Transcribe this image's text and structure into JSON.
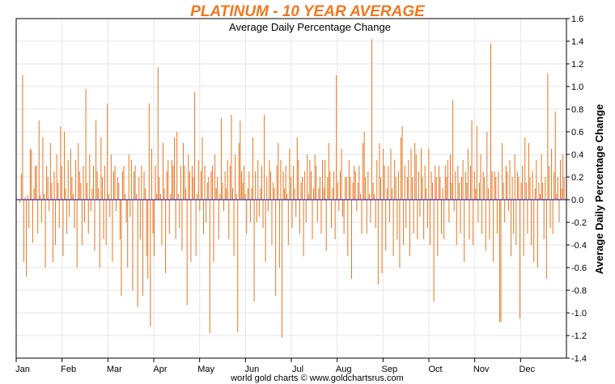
{
  "colors": {
    "bar": "#e87722",
    "zero_line": "#3a2fb0",
    "grid": "#e6e6e6",
    "title": "#f07820",
    "axis": "#000000"
  },
  "chart_data": {
    "type": "bar",
    "title": "PLATINUM - 10 YEAR AVERAGE",
    "subtitle": "Average Daily Percentage Change",
    "ylabel": "Average Daily Percentage Change",
    "footer": "world gold charts © www.goldchartsrus.com",
    "ylim": [
      -1.4,
      1.6
    ],
    "yticks": [
      1.6,
      1.4,
      1.2,
      1.0,
      0.8,
      0.6,
      0.4,
      0.2,
      0.0,
      -0.2,
      -0.4,
      -0.6,
      -0.8,
      -1.0,
      -1.2,
      -1.4
    ],
    "ytick_labels": [
      "1.6",
      "1.4",
      "1.2",
      "1.0",
      "0.8",
      "0.6",
      "0.4",
      "0.2",
      "0.0",
      "-0.2",
      "-0.4",
      "-0.6",
      "-0.8",
      "-1.0",
      "-1.2",
      "-1.4"
    ],
    "y_axis_side": "right",
    "grid": true,
    "months": [
      "Jan",
      "Feb",
      "Mar",
      "Apr",
      "May",
      "Jun",
      "Jul",
      "Aug",
      "Sep",
      "Oct",
      "Nov",
      "Dec"
    ],
    "series": [
      {
        "values": [
          -0.03,
          0.23,
          1.1,
          -0.55,
          0.02,
          -0.68,
          0.04,
          -0.25,
          0.45,
          0.44,
          -0.38,
          0.1,
          0.3,
          0.3,
          -0.3,
          0.7,
          0.04,
          -0.2,
          0.55,
          0.05,
          -0.6,
          0.3,
          0.2,
          -0.1,
          0.5,
          0.15,
          -0.55,
          0.25,
          -0.4,
          0.4,
          0.15,
          -0.25,
          0.65,
          0.3,
          -0.5,
          0.6,
          0.1,
          -0.3,
          0.35,
          -0.15,
          0.45,
          0.2,
          0.05,
          -0.25,
          0.35,
          -0.6,
          0.5,
          0.25,
          0.15,
          -0.4,
          0.3,
          -0.2,
          0.98,
          0.15,
          -0.3,
          0.4,
          -0.1,
          0.1,
          0.3,
          -0.45,
          0.7,
          0.25,
          0.1,
          -0.6,
          0.55,
          0.2,
          -0.35,
          0.3,
          -0.4,
          0.85,
          0.05,
          -0.15,
          0.4,
          -0.55,
          0.25,
          0.3,
          -0.1,
          0.2,
          0.15,
          -0.35,
          -0.85,
          0.25,
          0.3,
          0.05,
          -0.2,
          -0.6,
          0.4,
          -0.15,
          0.35,
          -0.8,
          0.25,
          0.3,
          0.05,
          -0.95,
          0.2,
          -0.35,
          0.3,
          -0.85,
          0.25,
          0.1,
          -0.5,
          -0.7,
          0.85,
          -1.12,
          0.45,
          -0.3,
          -0.5,
          0.3,
          0.05,
          1.17,
          0.2,
          0.05,
          -0.4,
          0.5,
          0.1,
          -0.65,
          0.25,
          0.35,
          -0.3,
          0.05,
          0.35,
          0.3,
          0.55,
          -0.35,
          0.6,
          0.05,
          -0.25,
          0.3,
          -0.45,
          0.5,
          0.3,
          0.1,
          -0.93,
          0.4,
          0.25,
          -0.55,
          0.3,
          0.2,
          0.95,
          -0.5,
          0.05,
          0.35,
          -0.1,
          0.25,
          0.55,
          -0.3,
          0.3,
          -0.2,
          0.15,
          0.2,
          -1.18,
          0.25,
          0.3,
          -0.55,
          0.4,
          0.1,
          0.2,
          -0.35,
          0.05,
          0.72,
          0.15,
          -0.1,
          0.25,
          0.1,
          0.35,
          -0.35,
          0.3,
          0.75,
          0.1,
          -0.5,
          0.4,
          0.05,
          -1.17,
          0.5,
          0.7,
          0.25,
          0.15,
          0.3,
          0.05,
          -0.3,
          0.1,
          0.25,
          -0.2,
          0.1,
          0.55,
          -0.9,
          0.25,
          -0.2,
          0.35,
          -0.15,
          0.1,
          0.3,
          -0.25,
          0.75,
          -0.55,
          0.2,
          -0.1,
          0.35,
          0.25,
          -0.4,
          0.15,
          0.1,
          -0.85,
          0.3,
          0.5,
          -0.6,
          0.35,
          -1.22,
          0.25,
          0.1,
          0.3,
          0.05,
          -0.4,
          0.45,
          0.2,
          -0.25,
          0.3,
          0.1,
          -0.15,
          0.55,
          0.35,
          -0.3,
          0.15,
          0.2,
          -0.5,
          0.25,
          -0.2,
          0.4,
          0.05,
          0.35,
          0.25,
          -0.35,
          0.1,
          0.4,
          0.3,
          -0.2,
          0.1,
          0.2,
          -0.3,
          0.35,
          0.1,
          0.35,
          -0.45,
          0.2,
          0.5,
          0.25,
          -0.25,
          0.1,
          0.25,
          -0.35,
          1.1,
          0.15,
          -0.1,
          0.25,
          0.45,
          -0.15,
          -0.3,
          0.2,
          0.2,
          -0.5,
          0.35,
          0.2,
          -0.7,
          0.15,
          0.3,
          0.25,
          -0.1,
          0.15,
          0.3,
          0.05,
          -0.3,
          0.5,
          0.6,
          0.2,
          -0.3,
          0.25,
          0.05,
          -0.2,
          1.42,
          0.15,
          0.05,
          -0.25,
          0.35,
          -0.75,
          0.5,
          0.2,
          -0.65,
          0.45,
          0.3,
          -0.45,
          0.1,
          0.3,
          -0.2,
          0.45,
          0.1,
          -0.5,
          0.35,
          0.2,
          -0.35,
          0.25,
          -0.6,
          0.55,
          0.65,
          -0.4,
          0.3,
          -0.25,
          0.2,
          0.35,
          -0.5,
          0.45,
          0.2,
          -0.3,
          0.5,
          0.4,
          -0.35,
          0.25,
          -0.15,
          0.45,
          0.2,
          -0.35,
          0.3,
          0.1,
          -0.25,
          0.45,
          -0.4,
          0.25,
          0.15,
          -0.9,
          0.3,
          0.2,
          -0.5,
          0.3,
          0.2,
          -0.3,
          0.1,
          -0.35,
          0.3,
          0.2,
          0.35,
          -0.2,
          0.4,
          0.15,
          0.88,
          -0.1,
          0.25,
          -0.4,
          0.3,
          0.15,
          -0.3,
          0.2,
          0.35,
          -0.55,
          0.25,
          0.15,
          0.45,
          -0.35,
          0.3,
          0.7,
          -0.4,
          0.25,
          0.1,
          0.65,
          -0.2,
          0.15,
          0.4,
          -0.3,
          0.25,
          0.2,
          -0.45,
          0.6,
          0.1,
          -0.35,
          1.38,
          0.25,
          -0.55,
          0.25,
          0.2,
          -0.3,
          0.25,
          -1.08,
          -1.08,
          0.5,
          0.15,
          -0.2,
          0.3,
          0.25,
          -0.1,
          0.35,
          -0.5,
          0.2,
          -0.3,
          0.4,
          -0.4,
          0.25,
          0.2,
          -1.05,
          0.15,
          0.3,
          -0.5,
          0.55,
          0.15,
          -0.3,
          0.5,
          0.2,
          -0.4,
          0.25,
          -0.55,
          0.1,
          0.35,
          -0.6,
          0.15,
          0.05,
          0.4,
          0.15,
          -0.35,
          0.2,
          -0.7,
          1.12,
          0.3,
          -0.25,
          0.45,
          -0.3,
          0.25,
          0.78,
          0.05,
          0.2,
          -0.2,
          0.35,
          0.1,
          0.4,
          0.2
        ]
      }
    ]
  }
}
